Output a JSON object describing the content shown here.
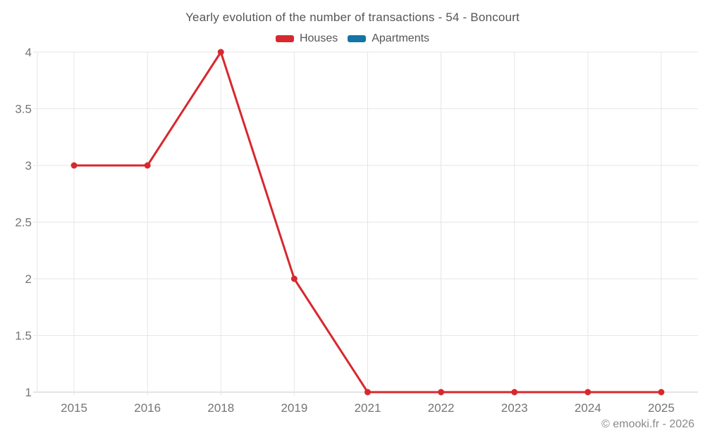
{
  "footer": {
    "credit": "© emooki.fr - 2026"
  },
  "colors": {
    "background": "#ffffff",
    "houses": "#d7282e",
    "apartments": "#1375a5",
    "grid": "#e6e6e6",
    "axis_line": "#c9c9c9",
    "tick_label": "#757575",
    "title_text": "#555555",
    "legend_text": "#555555",
    "credit_text": "#8a8a8a"
  },
  "chart_data": {
    "type": "line",
    "title": "Yearly evolution of the number of transactions - 54 - Boncourt",
    "categories": [
      "2015",
      "2016",
      "2018",
      "2019",
      "2021",
      "2022",
      "2023",
      "2024",
      "2025"
    ],
    "series": [
      {
        "name": "Houses",
        "color": "#d7282e",
        "values": [
          3,
          3,
          4,
          2,
          1,
          1,
          1,
          1,
          1
        ]
      },
      {
        "name": "Apartments",
        "color": "#1375a5",
        "values": []
      }
    ],
    "xlabel": "",
    "ylabel": "",
    "ylim": [
      1,
      4
    ],
    "yticks": [
      1,
      1.5,
      2,
      2.5,
      3,
      3.5,
      4
    ],
    "grid": true,
    "legend_position": "top",
    "marker": "circle"
  }
}
